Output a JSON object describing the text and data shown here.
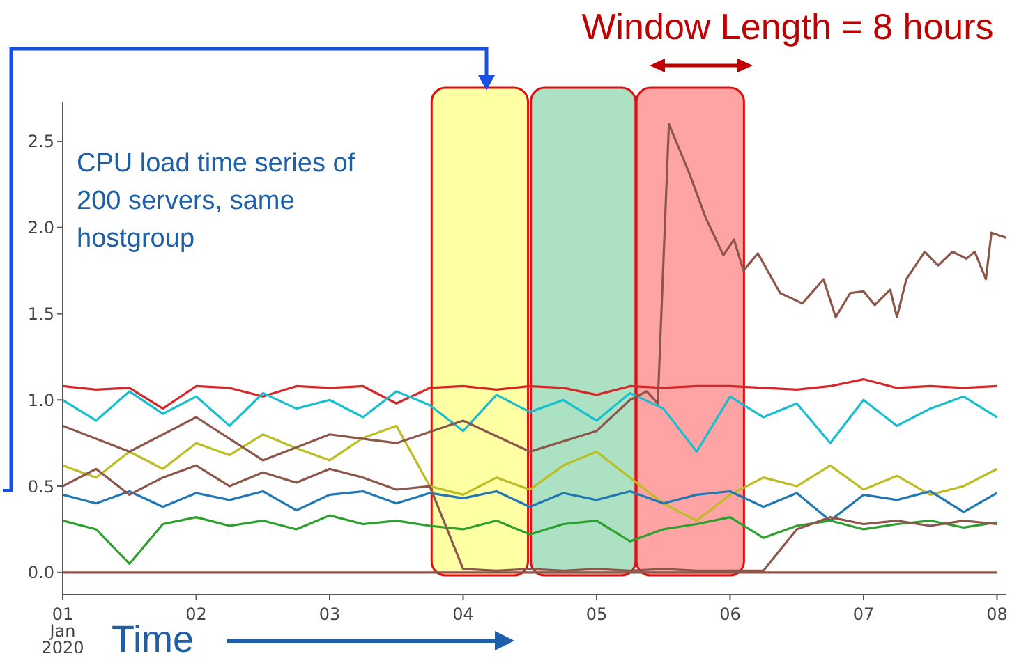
{
  "chart_data": {
    "type": "line",
    "annotations": [
      "CPU load time series of 200 servers, same hostgroup",
      "Window Length = 8 hours",
      "Time"
    ],
    "x": [
      "2020-01-01T00:00",
      "2020-01-01T06:00",
      "2020-01-01T12:00",
      "2020-01-01T18:00",
      "2020-01-02T00:00",
      "2020-01-02T06:00",
      "2020-01-02T12:00",
      "2020-01-02T18:00",
      "2020-01-03T00:00",
      "2020-01-03T06:00",
      "2020-01-03T12:00",
      "2020-01-03T18:00",
      "2020-01-04T00:00",
      "2020-01-04T06:00",
      "2020-01-04T12:00",
      "2020-01-04T18:00",
      "2020-01-05T00:00",
      "2020-01-05T06:00",
      "2020-01-05T12:00",
      "2020-01-05T18:00",
      "2020-01-06T00:00",
      "2020-01-06T06:00",
      "2020-01-06T12:00",
      "2020-01-06T18:00",
      "2020-01-07T00:00",
      "2020-01-07T06:00",
      "2020-01-07T12:00",
      "2020-01-07T18:00",
      "2020-01-08T00:00"
    ],
    "series": [
      {
        "color": "#d62728",
        "values": [
          1.08,
          1.06,
          1.07,
          0.95,
          1.08,
          1.07,
          1.02,
          1.08,
          1.07,
          1.08,
          0.98,
          1.07,
          1.08,
          1.06,
          1.08,
          1.07,
          1.03,
          1.08,
          1.07,
          1.08,
          1.08,
          1.07,
          1.06,
          1.08,
          1.12,
          1.07,
          1.08,
          1.07,
          1.08
        ]
      },
      {
        "color": "#17becf",
        "values": [
          1.0,
          0.88,
          1.05,
          0.92,
          1.02,
          0.85,
          1.04,
          0.95,
          1.0,
          0.9,
          1.05,
          0.97,
          0.82,
          1.03,
          0.93,
          1.0,
          0.88,
          1.04,
          0.95,
          0.7,
          1.02,
          0.9,
          0.98,
          0.75,
          1.0,
          0.85,
          0.95,
          1.02,
          0.9
        ]
      },
      {
        "color": "#bcbd22",
        "values": [
          0.62,
          0.55,
          0.7,
          0.6,
          0.75,
          0.68,
          0.8,
          0.72,
          0.65,
          0.78,
          0.85,
          0.5,
          0.45,
          0.55,
          0.48,
          0.62,
          0.7,
          0.55,
          0.4,
          0.3,
          0.45,
          0.55,
          0.5,
          0.62,
          0.48,
          0.56,
          0.45,
          0.5,
          0.6
        ]
      },
      {
        "color": "#1f77b4",
        "values": [
          0.45,
          0.4,
          0.47,
          0.38,
          0.46,
          0.42,
          0.47,
          0.36,
          0.45,
          0.47,
          0.4,
          0.46,
          0.43,
          0.47,
          0.38,
          0.46,
          0.42,
          0.47,
          0.4,
          0.45,
          0.47,
          0.38,
          0.46,
          0.3,
          0.45,
          0.42,
          0.47,
          0.35,
          0.46
        ]
      },
      {
        "color": "#2ca02c",
        "values": [
          0.3,
          0.25,
          0.05,
          0.28,
          0.32,
          0.27,
          0.3,
          0.25,
          0.33,
          0.28,
          0.3,
          0.27,
          0.25,
          0.3,
          0.22,
          0.28,
          0.3,
          0.18,
          0.25,
          0.28,
          0.32,
          0.2,
          0.27,
          0.3,
          0.25,
          0.28,
          0.3,
          0.26,
          0.29
        ]
      },
      {
        "color": "#8c564b",
        "values": [
          0.5,
          0.6,
          0.45,
          0.55,
          0.62,
          0.5,
          0.58,
          0.52,
          0.6,
          0.55,
          0.48,
          0.5,
          0.02,
          0.01,
          0.02,
          0.01,
          0.02,
          0.01,
          0.02,
          0.01,
          0.01,
          0.01,
          0.25,
          0.32,
          0.28,
          0.3,
          0.27,
          0.3,
          0.28
        ]
      },
      {
        "color": "#8c564b",
        "values": [
          0,
          0,
          0,
          0,
          0,
          0,
          0,
          0,
          0,
          0,
          0,
          0,
          0,
          0,
          0,
          0,
          0,
          0,
          0,
          0,
          0,
          0,
          0,
          0,
          0,
          0,
          0,
          0,
          0
        ]
      },
      {
        "color": "#8c564b",
        "x": [
          "2020-01-01T00:00",
          "2020-01-01T12:00",
          "2020-01-02T00:00",
          "2020-01-02T12:00",
          "2020-01-03T00:00",
          "2020-01-03T12:00",
          "2020-01-04T00:00",
          "2020-01-04T12:00",
          "2020-01-05T00:00",
          "2020-01-05T06:00",
          "2020-01-05T09:00",
          "2020-01-05T11:00",
          "2020-01-05T13:00",
          "2020-01-05T16:36",
          "2020-01-05T19:42",
          "2020-01-05T22:48",
          "2020-01-06T00:42",
          "2020-01-06T02:24",
          "2020-01-06T05:00",
          "2020-01-06T09:00",
          "2020-01-06T13:00",
          "2020-01-06T16:48",
          "2020-01-06T19:00",
          "2020-01-06T21:36",
          "2020-01-07T00:00",
          "2020-01-07T02:00",
          "2020-01-07T04:48",
          "2020-01-07T06:00",
          "2020-01-07T07:42",
          "2020-01-07T11:00",
          "2020-01-07T13:24",
          "2020-01-07T16:00",
          "2020-01-07T18:30",
          "2020-01-07T20:00",
          "2020-01-07T22:00",
          "2020-01-07T23:00",
          "2020-01-08T01:42"
        ],
        "values": [
          0.85,
          0.7,
          0.9,
          0.65,
          0.8,
          0.75,
          0.88,
          0.7,
          0.82,
          1.0,
          1.05,
          0.98,
          2.6,
          2.32,
          2.05,
          1.84,
          1.93,
          1.75,
          1.85,
          1.62,
          1.56,
          1.7,
          1.48,
          1.62,
          1.63,
          1.55,
          1.64,
          1.48,
          1.7,
          1.86,
          1.78,
          1.86,
          1.82,
          1.86,
          1.7,
          1.97,
          1.94
        ]
      }
    ],
    "bands": [
      {
        "axis": "x",
        "from": "2020-01-03T18:20",
        "to": "2020-01-04T11:40",
        "color": "#ffff99"
      },
      {
        "axis": "x",
        "from": "2020-01-04T12:10",
        "to": "2020-01-05T07:00",
        "color": "#a3dfbc"
      },
      {
        "axis": "x",
        "from": "2020-01-05T07:10",
        "to": "2020-01-06T02:30",
        "color": "#ff9a9a"
      }
    ],
    "xlim": [
      "2020-01-01T00:00",
      "2020-01-08T01:42"
    ],
    "xticks": [
      {
        "value": "2020-01-01",
        "label": "01\nJan\n2020"
      },
      {
        "value": "2020-01-02",
        "label": "02"
      },
      {
        "value": "2020-01-03",
        "label": "03"
      },
      {
        "value": "2020-01-04",
        "label": "04"
      },
      {
        "value": "2020-01-05",
        "label": "05"
      },
      {
        "value": "2020-01-06",
        "label": "06"
      },
      {
        "value": "2020-01-07",
        "label": "07"
      },
      {
        "value": "2020-01-08",
        "label": "08"
      }
    ],
    "ylim": [
      -0.13,
      2.73
    ],
    "yticks": [
      {
        "value": 0,
        "label": "0.0"
      },
      {
        "value": 0.5,
        "label": "0.5"
      },
      {
        "value": 1,
        "label": "1.0"
      },
      {
        "value": 1.5,
        "label": "1.5"
      },
      {
        "value": 2,
        "label": "2.0"
      },
      {
        "value": 2.5,
        "label": "2.5"
      }
    ],
    "marker": "none",
    "line_style": "solid"
  }
}
